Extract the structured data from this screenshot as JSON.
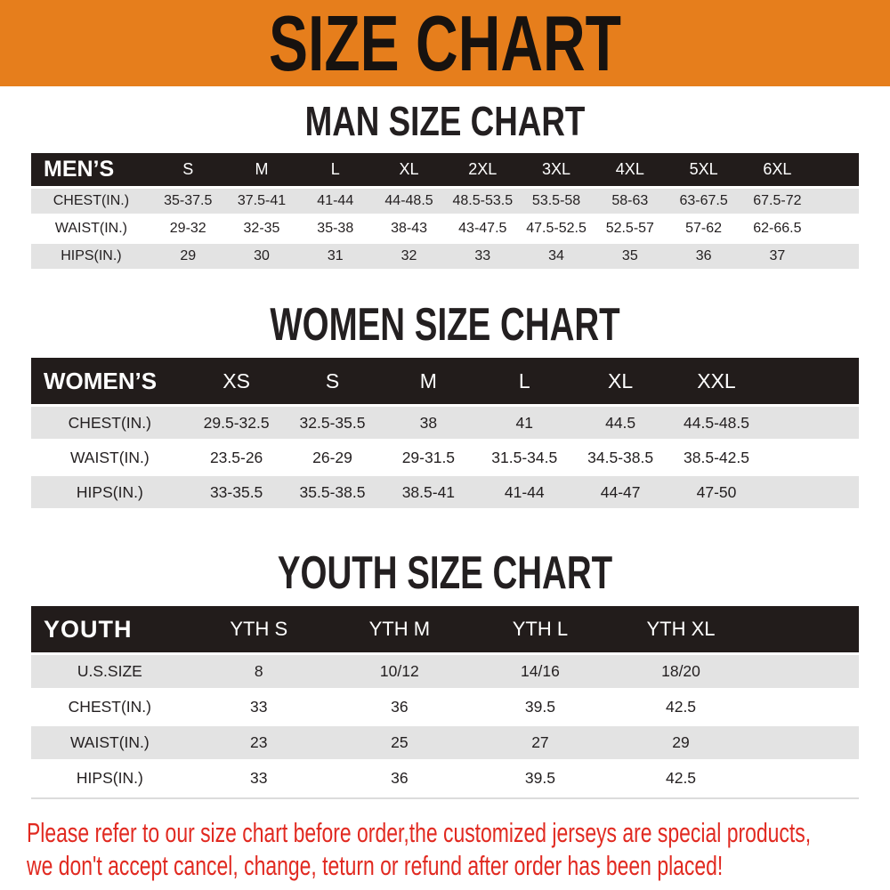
{
  "banner": {
    "title": "SIZE CHART",
    "accent_orange": "#E67E1C"
  },
  "colors": {
    "table_header_black": "#221C1B",
    "row_stripe_gray": "#E3E3E3",
    "notice_red": "#E12A21"
  },
  "sections": {
    "men": {
      "heading": "MAN SIZE CHART",
      "header": [
        "MEN’S",
        "S",
        "M",
        "L",
        "XL",
        "2XL",
        "3XL",
        "4XL",
        "5XL",
        "6XL"
      ],
      "rows": [
        {
          "label": "CHEST(IN.)",
          "values": [
            "35-37.5",
            "37.5-41",
            "41-44",
            "44-48.5",
            "48.5-53.5",
            "53.5-58",
            "58-63",
            "63-67.5",
            "67.5-72"
          ]
        },
        {
          "label": "WAIST(IN.)",
          "values": [
            "29-32",
            "32-35",
            "35-38",
            "38-43",
            "43-47.5",
            "47.5-52.5",
            "52.5-57",
            "57-62",
            "62-66.5"
          ]
        },
        {
          "label": "HIPS(IN.)",
          "values": [
            "29",
            "30",
            "31",
            "32",
            "33",
            "34",
            "35",
            "36",
            "37"
          ]
        }
      ]
    },
    "women": {
      "heading": "WOMEN SIZE CHART",
      "header": [
        "WOMEN’S",
        "XS",
        "S",
        "M",
        "L",
        "XL",
        "XXL"
      ],
      "rows": [
        {
          "label": "CHEST(IN.)",
          "values": [
            "29.5-32.5",
            "32.5-35.5",
            "38",
            "41",
            "44.5",
            "44.5-48.5"
          ]
        },
        {
          "label": "WAIST(IN.)",
          "values": [
            "23.5-26",
            "26-29",
            "29-31.5",
            "31.5-34.5",
            "34.5-38.5",
            "38.5-42.5"
          ]
        },
        {
          "label": "HIPS(IN.)",
          "values": [
            "33-35.5",
            "35.5-38.5",
            "38.5-41",
            "41-44",
            "44-47",
            "47-50"
          ]
        }
      ]
    },
    "youth": {
      "heading": "YOUTH SIZE CHART",
      "header": [
        "YOUTH",
        "YTH S",
        "YTH M",
        "YTH L",
        "YTH XL"
      ],
      "rows": [
        {
          "label": "U.S.SIZE",
          "values": [
            "8",
            "10/12",
            "14/16",
            "18/20"
          ]
        },
        {
          "label": "CHEST(IN.)",
          "values": [
            "33",
            "36",
            "39.5",
            "42.5"
          ]
        },
        {
          "label": "WAIST(IN.)",
          "values": [
            "23",
            "25",
            "27",
            "29"
          ]
        },
        {
          "label": "HIPS(IN.)",
          "values": [
            "33",
            "36",
            "39.5",
            "42.5"
          ]
        }
      ]
    }
  },
  "footer": {
    "line1": "Please refer to our size chart before order,the customized jerseys are special products,",
    "line2": "we don't accept cancel, change, teturn or refund after order has been placed!"
  }
}
